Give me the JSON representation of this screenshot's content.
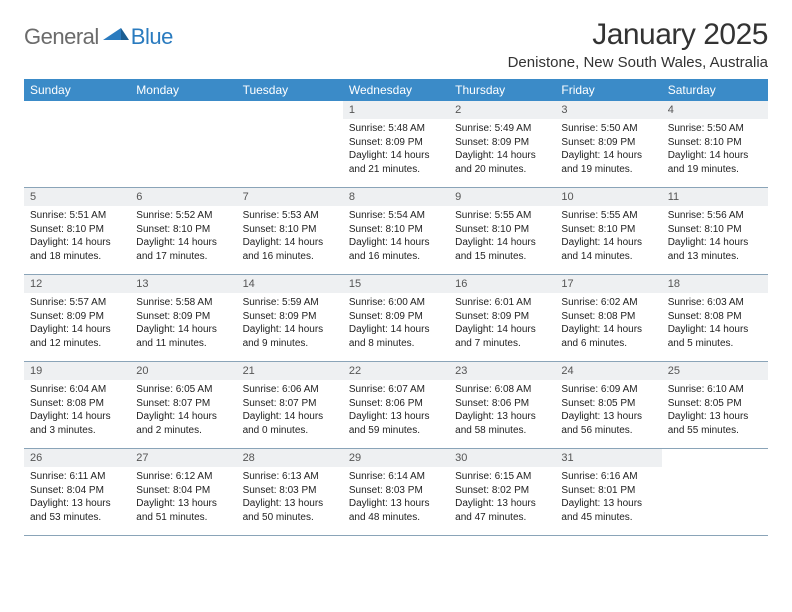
{
  "logo": {
    "word1": "General",
    "word2": "Blue"
  },
  "title": "January 2025",
  "subtitle": "Denistone, New South Wales, Australia",
  "colors": {
    "header_bg": "#3b8bc8",
    "header_text": "#ffffff",
    "daynum_bg": "#eef0f2",
    "rule": "#8aa4b8",
    "body_text": "#222222",
    "logo_gray": "#6b6b6b",
    "logo_blue": "#2a7bbf"
  },
  "dayNames": [
    "Sunday",
    "Monday",
    "Tuesday",
    "Wednesday",
    "Thursday",
    "Friday",
    "Saturday"
  ],
  "weeks": [
    [
      {
        "n": "",
        "lines": []
      },
      {
        "n": "",
        "lines": []
      },
      {
        "n": "",
        "lines": []
      },
      {
        "n": "1",
        "lines": [
          "Sunrise: 5:48 AM",
          "Sunset: 8:09 PM",
          "Daylight: 14 hours",
          "and 21 minutes."
        ]
      },
      {
        "n": "2",
        "lines": [
          "Sunrise: 5:49 AM",
          "Sunset: 8:09 PM",
          "Daylight: 14 hours",
          "and 20 minutes."
        ]
      },
      {
        "n": "3",
        "lines": [
          "Sunrise: 5:50 AM",
          "Sunset: 8:09 PM",
          "Daylight: 14 hours",
          "and 19 minutes."
        ]
      },
      {
        "n": "4",
        "lines": [
          "Sunrise: 5:50 AM",
          "Sunset: 8:10 PM",
          "Daylight: 14 hours",
          "and 19 minutes."
        ]
      }
    ],
    [
      {
        "n": "5",
        "lines": [
          "Sunrise: 5:51 AM",
          "Sunset: 8:10 PM",
          "Daylight: 14 hours",
          "and 18 minutes."
        ]
      },
      {
        "n": "6",
        "lines": [
          "Sunrise: 5:52 AM",
          "Sunset: 8:10 PM",
          "Daylight: 14 hours",
          "and 17 minutes."
        ]
      },
      {
        "n": "7",
        "lines": [
          "Sunrise: 5:53 AM",
          "Sunset: 8:10 PM",
          "Daylight: 14 hours",
          "and 16 minutes."
        ]
      },
      {
        "n": "8",
        "lines": [
          "Sunrise: 5:54 AM",
          "Sunset: 8:10 PM",
          "Daylight: 14 hours",
          "and 16 minutes."
        ]
      },
      {
        "n": "9",
        "lines": [
          "Sunrise: 5:55 AM",
          "Sunset: 8:10 PM",
          "Daylight: 14 hours",
          "and 15 minutes."
        ]
      },
      {
        "n": "10",
        "lines": [
          "Sunrise: 5:55 AM",
          "Sunset: 8:10 PM",
          "Daylight: 14 hours",
          "and 14 minutes."
        ]
      },
      {
        "n": "11",
        "lines": [
          "Sunrise: 5:56 AM",
          "Sunset: 8:10 PM",
          "Daylight: 14 hours",
          "and 13 minutes."
        ]
      }
    ],
    [
      {
        "n": "12",
        "lines": [
          "Sunrise: 5:57 AM",
          "Sunset: 8:09 PM",
          "Daylight: 14 hours",
          "and 12 minutes."
        ]
      },
      {
        "n": "13",
        "lines": [
          "Sunrise: 5:58 AM",
          "Sunset: 8:09 PM",
          "Daylight: 14 hours",
          "and 11 minutes."
        ]
      },
      {
        "n": "14",
        "lines": [
          "Sunrise: 5:59 AM",
          "Sunset: 8:09 PM",
          "Daylight: 14 hours",
          "and 9 minutes."
        ]
      },
      {
        "n": "15",
        "lines": [
          "Sunrise: 6:00 AM",
          "Sunset: 8:09 PM",
          "Daylight: 14 hours",
          "and 8 minutes."
        ]
      },
      {
        "n": "16",
        "lines": [
          "Sunrise: 6:01 AM",
          "Sunset: 8:09 PM",
          "Daylight: 14 hours",
          "and 7 minutes."
        ]
      },
      {
        "n": "17",
        "lines": [
          "Sunrise: 6:02 AM",
          "Sunset: 8:08 PM",
          "Daylight: 14 hours",
          "and 6 minutes."
        ]
      },
      {
        "n": "18",
        "lines": [
          "Sunrise: 6:03 AM",
          "Sunset: 8:08 PM",
          "Daylight: 14 hours",
          "and 5 minutes."
        ]
      }
    ],
    [
      {
        "n": "19",
        "lines": [
          "Sunrise: 6:04 AM",
          "Sunset: 8:08 PM",
          "Daylight: 14 hours",
          "and 3 minutes."
        ]
      },
      {
        "n": "20",
        "lines": [
          "Sunrise: 6:05 AM",
          "Sunset: 8:07 PM",
          "Daylight: 14 hours",
          "and 2 minutes."
        ]
      },
      {
        "n": "21",
        "lines": [
          "Sunrise: 6:06 AM",
          "Sunset: 8:07 PM",
          "Daylight: 14 hours",
          "and 0 minutes."
        ]
      },
      {
        "n": "22",
        "lines": [
          "Sunrise: 6:07 AM",
          "Sunset: 8:06 PM",
          "Daylight: 13 hours",
          "and 59 minutes."
        ]
      },
      {
        "n": "23",
        "lines": [
          "Sunrise: 6:08 AM",
          "Sunset: 8:06 PM",
          "Daylight: 13 hours",
          "and 58 minutes."
        ]
      },
      {
        "n": "24",
        "lines": [
          "Sunrise: 6:09 AM",
          "Sunset: 8:05 PM",
          "Daylight: 13 hours",
          "and 56 minutes."
        ]
      },
      {
        "n": "25",
        "lines": [
          "Sunrise: 6:10 AM",
          "Sunset: 8:05 PM",
          "Daylight: 13 hours",
          "and 55 minutes."
        ]
      }
    ],
    [
      {
        "n": "26",
        "lines": [
          "Sunrise: 6:11 AM",
          "Sunset: 8:04 PM",
          "Daylight: 13 hours",
          "and 53 minutes."
        ]
      },
      {
        "n": "27",
        "lines": [
          "Sunrise: 6:12 AM",
          "Sunset: 8:04 PM",
          "Daylight: 13 hours",
          "and 51 minutes."
        ]
      },
      {
        "n": "28",
        "lines": [
          "Sunrise: 6:13 AM",
          "Sunset: 8:03 PM",
          "Daylight: 13 hours",
          "and 50 minutes."
        ]
      },
      {
        "n": "29",
        "lines": [
          "Sunrise: 6:14 AM",
          "Sunset: 8:03 PM",
          "Daylight: 13 hours",
          "and 48 minutes."
        ]
      },
      {
        "n": "30",
        "lines": [
          "Sunrise: 6:15 AM",
          "Sunset: 8:02 PM",
          "Daylight: 13 hours",
          "and 47 minutes."
        ]
      },
      {
        "n": "31",
        "lines": [
          "Sunrise: 6:16 AM",
          "Sunset: 8:01 PM",
          "Daylight: 13 hours",
          "and 45 minutes."
        ]
      },
      {
        "n": "",
        "lines": []
      }
    ]
  ]
}
